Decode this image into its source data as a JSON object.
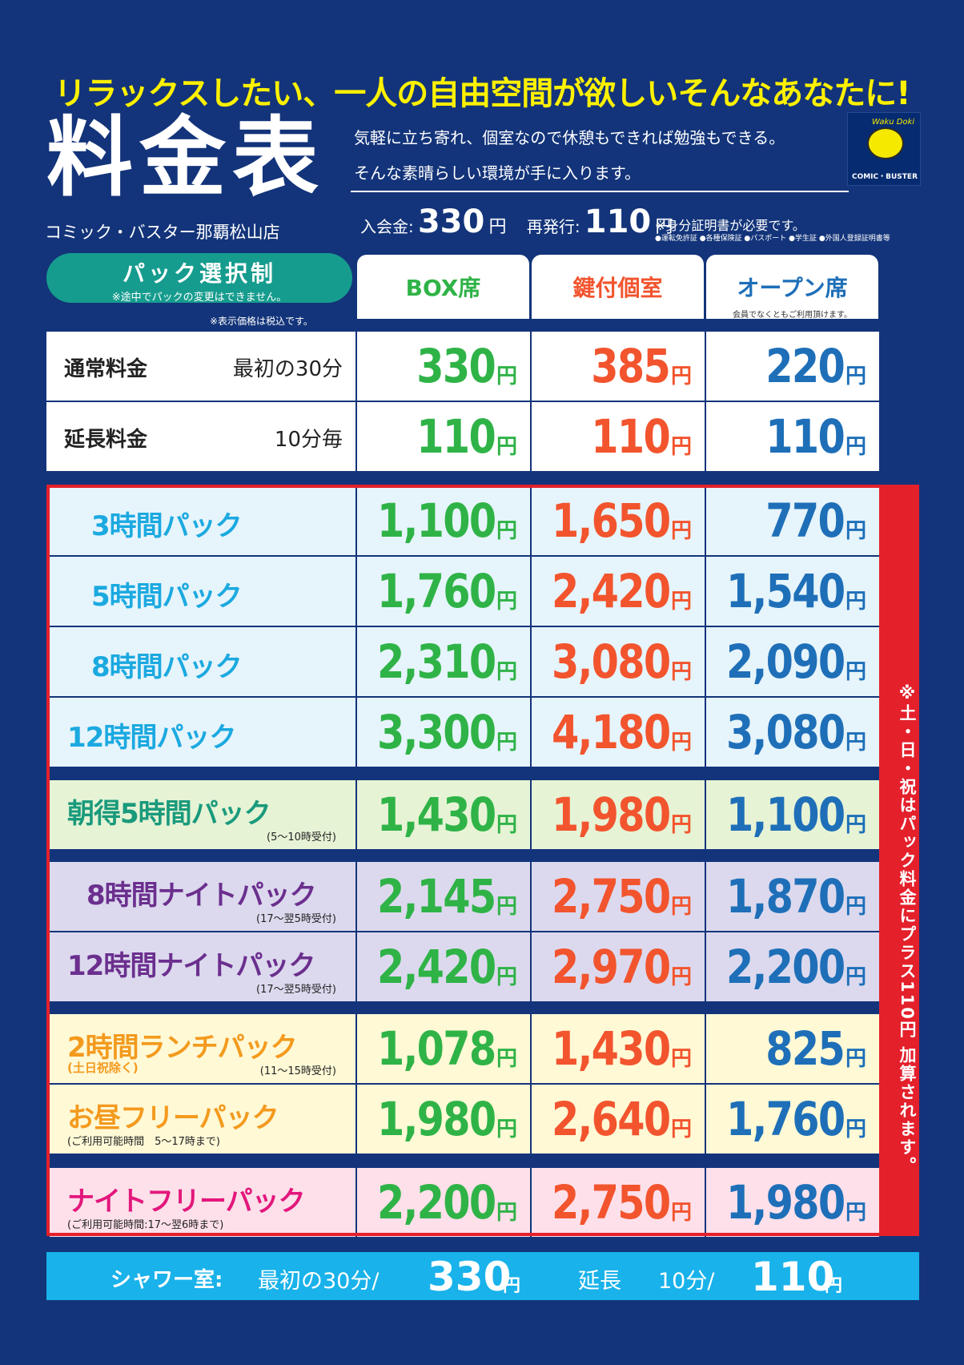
{
  "tagline": "リラックスしたい、一人の自由空間が欲しいそんなあなたに!",
  "title": "料金表",
  "store": "コミック・バスター那覇松山店",
  "desc1": "気軽に立ち寄れ、個室なので休憩もできれば勉強もできる。",
  "desc2": "そんな素晴らしい環境が手に入ります。",
  "logo": {
    "tag": "Waku Doki",
    "name": "COMIC・BUSTER"
  },
  "fees": {
    "join_label": "入会金:",
    "join_value": "330",
    "yen": "円",
    "reissue_label": "再発行:",
    "reissue_value": "110"
  },
  "id_note": "※身分証明書が必要です。",
  "id_list": "●運転免許証 ●各種保険証 ●パスポート ●学生証 ●外国人登録証明書等",
  "pack": {
    "title": "パック選択制",
    "note": "※途中でパックの変更はできません。"
  },
  "tax_note": "※表示価格は税込です。",
  "columns": [
    {
      "label": "BOX席",
      "sub": ""
    },
    {
      "label": "鍵付個室",
      "sub": ""
    },
    {
      "label": "オープン席",
      "sub": "会員でなくともご利用頂けます。"
    }
  ],
  "yen": "円",
  "basic_rows": [
    {
      "name": "通常料金",
      "sub": "最初の30分",
      "prices": [
        "330",
        "385",
        "220"
      ]
    },
    {
      "name": "延長料金",
      "sub": "10分毎",
      "prices": [
        "110",
        "110",
        "110"
      ]
    }
  ],
  "pack_rows": [
    {
      "name": "3時間パック",
      "note": "",
      "note2": "",
      "prices": [
        "1,100",
        "1,650",
        "770"
      ]
    },
    {
      "name": "5時間パック",
      "note": "",
      "note2": "",
      "prices": [
        "1,760",
        "2,420",
        "1,540"
      ]
    },
    {
      "name": "8時間パック",
      "note": "",
      "note2": "",
      "prices": [
        "2,310",
        "3,080",
        "2,090"
      ]
    },
    {
      "name": "12時間パック",
      "note": "",
      "note2": "",
      "prices": [
        "3,300",
        "4,180",
        "3,080"
      ]
    },
    {
      "name": "朝得5時間パック",
      "note": "(5〜10時受付)",
      "note2": "",
      "prices": [
        "1,430",
        "1,980",
        "1,100"
      ]
    },
    {
      "name": "8時間ナイトパック",
      "note": "(17〜翌5時受付)",
      "note2": "",
      "prices": [
        "2,145",
        "2,750",
        "1,870"
      ]
    },
    {
      "name": "12時間ナイトパック",
      "note": "(17〜翌5時受付)",
      "note2": "",
      "prices": [
        "2,420",
        "2,970",
        "2,200"
      ]
    },
    {
      "name": "2時間ランチパック",
      "note": "(11〜15時受付)",
      "note2": "(土日祝除く)",
      "prices": [
        "1,078",
        "1,430",
        "825"
      ]
    },
    {
      "name": "お昼フリーパック",
      "note": "(ご利用可能時間　5〜17時まで)",
      "note2": "",
      "prices": [
        "1,980",
        "2,640",
        "1,760"
      ]
    },
    {
      "name": "ナイトフリーパック",
      "note": "(ご利用可能時間:17〜翌6時まで)",
      "note2": "",
      "prices": [
        "2,200",
        "2,750",
        "1,980"
      ]
    }
  ],
  "weekend_note": "※土・日・祝はパック料金にプラス110円 加算されます。",
  "shower": {
    "label": "シャワー室:",
    "first": "最初の30分/",
    "first_price": "330",
    "ext": "延長",
    "ext_unit": "10分/",
    "ext_price": "110",
    "yen": "円"
  },
  "colors": {
    "bg": "#13347a",
    "box": "#2fb347",
    "key": "#f2542e",
    "open": "#1e6fb8",
    "red": "#e4202b",
    "cyan": "#19b2ea"
  }
}
